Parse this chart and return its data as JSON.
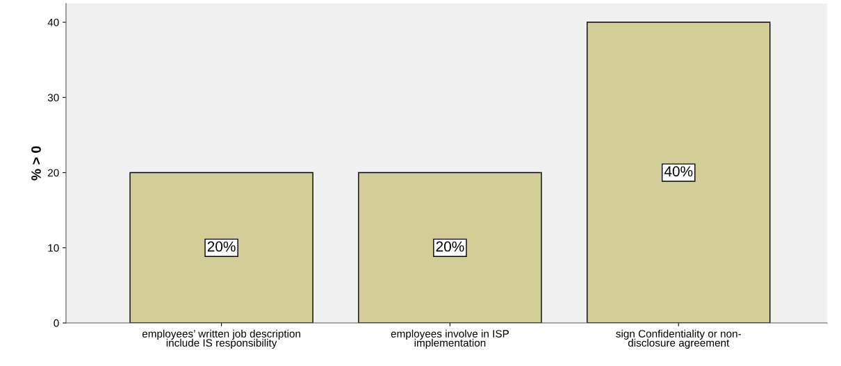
{
  "chart_data": {
    "type": "bar",
    "ylabel": "% > 0",
    "categories": [
      "employees’ written job description\ninclude IS responsibility",
      "employees involve in ISP\nimplementation",
      "sign Confidentiality or non-\ndisclosure agreement"
    ],
    "values": [
      20,
      20,
      40
    ],
    "value_labels": [
      "20%",
      "20%",
      "40%"
    ],
    "color": "#d3ce98",
    "ylim": [
      0,
      42.5
    ],
    "yticks": [
      0,
      10,
      20,
      30,
      40
    ],
    "grid": false,
    "legend": false
  }
}
